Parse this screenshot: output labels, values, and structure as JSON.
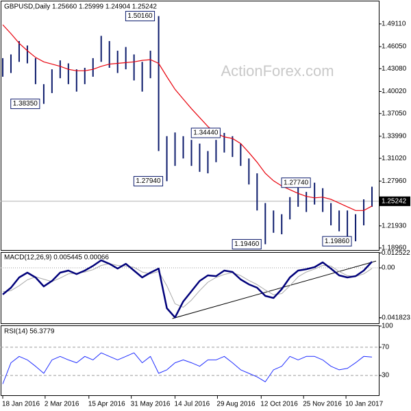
{
  "chart_data": [
    {
      "type": "hlbar",
      "title": "GBPUSD,Daily  1.25660 1.25999 1.24904 1.25242",
      "watermark": "ActionForex.com",
      "x": [
        0,
        6,
        12,
        18,
        24,
        30,
        36,
        42,
        48,
        54,
        60,
        66,
        72,
        78,
        84,
        90,
        96,
        102,
        108,
        114,
        120,
        126,
        132,
        138,
        144,
        150,
        156,
        162,
        168,
        174,
        180,
        186,
        192,
        198,
        204,
        210,
        216,
        222,
        228,
        234,
        240,
        246,
        252,
        258,
        264,
        270
      ],
      "high": [
        1.445,
        1.45,
        1.468,
        1.462,
        1.445,
        1.41,
        1.43,
        1.442,
        1.438,
        1.43,
        1.432,
        1.445,
        1.475,
        1.468,
        1.455,
        1.46,
        1.45,
        1.44,
        1.455,
        1.5016,
        1.34,
        1.345,
        1.34,
        1.335,
        1.33,
        1.32,
        1.335,
        1.3444,
        1.34,
        1.33,
        1.31,
        1.29,
        1.25,
        1.24,
        1.235,
        1.258,
        1.272,
        1.265,
        1.2774,
        1.27,
        1.25,
        1.24,
        1.24,
        1.235,
        1.255,
        1.272
      ],
      "low": [
        1.42,
        1.425,
        1.44,
        1.438,
        1.41,
        1.3835,
        1.398,
        1.418,
        1.41,
        1.4,
        1.41,
        1.42,
        1.44,
        1.432,
        1.425,
        1.43,
        1.415,
        1.4,
        1.418,
        1.32,
        1.2794,
        1.3,
        1.31,
        1.3,
        1.292,
        1.29,
        1.305,
        1.318,
        1.312,
        1.3,
        1.275,
        1.24,
        1.1946,
        1.21,
        1.208,
        1.228,
        1.245,
        1.238,
        1.248,
        1.238,
        1.22,
        1.212,
        1.205,
        1.1986,
        1.22,
        1.245
      ],
      "ma": [
        1.49,
        1.478,
        1.465,
        1.455,
        1.446,
        1.44,
        1.437,
        1.434,
        1.43,
        1.428,
        1.428,
        1.43,
        1.434,
        1.437,
        1.438,
        1.439,
        1.44,
        1.442,
        1.443,
        1.438,
        1.42,
        1.403,
        1.39,
        1.377,
        1.365,
        1.353,
        1.344,
        1.339,
        1.337,
        1.33,
        1.318,
        1.305,
        1.29,
        1.28,
        1.273,
        1.268,
        1.263,
        1.259,
        1.257,
        1.258,
        1.255,
        1.25,
        1.245,
        1.24,
        1.24,
        1.246
      ],
      "bar_color": "#0b1a6b",
      "ma_color": "#e8000b",
      "last": 1.25242,
      "annotations": [
        {
          "x": 114,
          "value": 1.5016,
          "label": "1.50160"
        },
        {
          "x": 30,
          "value": 1.3835,
          "label": "1.38350"
        },
        {
          "x": 120,
          "value": 1.2794,
          "label": "1.27940"
        },
        {
          "x": 162,
          "value": 1.3444,
          "label": "1.34440"
        },
        {
          "x": 192,
          "value": 1.1946,
          "label": "1.19460"
        },
        {
          "x": 228,
          "value": 1.2774,
          "label": "1.27740"
        },
        {
          "x": 258,
          "value": 1.1986,
          "label": "1.19860"
        }
      ],
      "xlim": [
        -1.5,
        275
      ],
      "ylim": [
        1.1868,
        1.5214
      ],
      "yticks": [
        {
          "value": 1.4911,
          "label": "1.49110"
        },
        {
          "value": 1.4605,
          "label": "1.46050"
        },
        {
          "value": 1.4308,
          "label": "1.43080"
        },
        {
          "value": 1.4002,
          "label": "1.40020"
        },
        {
          "value": 1.3705,
          "label": "1.37050"
        },
        {
          "value": 1.3399,
          "label": "1.33990"
        },
        {
          "value": 1.3102,
          "label": "1.31020"
        },
        {
          "value": 1.2796,
          "label": "1.27960"
        },
        {
          "value": 1.2193,
          "label": "1.21930"
        },
        {
          "value": 1.1896,
          "label": "1.18960"
        }
      ]
    },
    {
      "type": "line",
      "title": "MACD(12,26,9) 0.005445 0.00066",
      "series": [
        {
          "color": "#00007a",
          "width": 2.5,
          "values": [
            -0.0223,
            -0.0166,
            -0.008,
            -0.004,
            -0.008,
            -0.0155,
            -0.0109,
            -0.004,
            -0.0023,
            -0.0052,
            -0.0023,
            0.0017,
            0.0063,
            0.0034,
            -0.0006,
            0.0034,
            -0.0023,
            -0.008,
            -0.004,
            -0.0006,
            -0.0338,
            -0.0415,
            -0.0281,
            -0.0195,
            -0.0109,
            -0.0063,
            -0.0069,
            -0.0023,
            -0.0034,
            -0.0097,
            -0.0138,
            -0.0166,
            -0.0235,
            -0.0252,
            -0.0178,
            -0.008,
            -0.0023,
            -0.0011,
            0.0006,
            0.0046,
            -0.0006,
            -0.0063,
            -0.008,
            -0.0069,
            -0.0023,
            0.0052
          ]
        },
        {
          "color": "#a8a8a8",
          "width": 1,
          "values": [
            -0.02,
            -0.019,
            -0.015,
            -0.01,
            -0.0075,
            -0.0095,
            -0.0115,
            -0.0085,
            -0.005,
            -0.0045,
            -0.0035,
            -0.0015,
            0.002,
            0.0035,
            0.002,
            0.0015,
            0.0005,
            -0.0035,
            -0.005,
            -0.003,
            -0.015,
            -0.03,
            -0.033,
            -0.027,
            -0.019,
            -0.012,
            -0.008,
            -0.0055,
            -0.004,
            -0.0065,
            -0.0105,
            -0.014,
            -0.0185,
            -0.0225,
            -0.0215,
            -0.015,
            -0.0075,
            -0.0035,
            -0.001,
            0.002,
            0.0015,
            -0.003,
            -0.0065,
            -0.0072,
            -0.005,
            -0.0005
          ]
        }
      ],
      "trendline": {
        "x": [
          124,
          273
        ],
        "values": [
          -0.0424,
          0.0057
        ],
        "color": "#000000"
      },
      "levels": [
        0
      ],
      "level_dash": "1,2",
      "ylim": [
        -0.0464,
        0.0132
      ],
      "yticks": [
        0.012522,
        {
          "value": 0,
          "label": "0.00"
        },
        -0.041823
      ]
    },
    {
      "type": "line",
      "title": "RSI(14) 56.3779",
      "series": [
        {
          "color": "#1e2cff",
          "width": 1,
          "values": [
            18,
            48,
            57,
            52,
            43,
            33,
            52,
            57,
            52,
            48,
            57,
            52,
            62,
            57,
            52,
            57,
            62,
            48,
            57,
            33,
            38,
            48,
            52,
            48,
            43,
            52,
            52,
            57,
            48,
            38,
            33,
            28,
            21,
            38,
            43,
            57,
            52,
            57,
            57,
            52,
            43,
            38,
            40,
            48,
            57,
            56
          ]
        }
      ],
      "levels": [
        70,
        30
      ],
      "level_dash": "4,3",
      "ylim": [
        0,
        100
      ],
      "yticks": [
        100,
        70,
        30
      ],
      "xticks": [
        {
          "value": 0,
          "label": "18 Jan 2016"
        },
        {
          "value": 31,
          "label": "2 Mar 2016"
        },
        {
          "value": 63,
          "label": "15 Apr 2016"
        },
        {
          "value": 94,
          "label": "31 May 2016"
        },
        {
          "value": 126,
          "label": "14 Jul 2016"
        },
        {
          "value": 157,
          "label": "29 Aug 2016"
        },
        {
          "value": 189,
          "label": "12 Oct 2016"
        },
        {
          "value": 220,
          "label": "25 Nov 2016"
        },
        {
          "value": 251,
          "label": "10 Jan 2017"
        }
      ]
    }
  ]
}
